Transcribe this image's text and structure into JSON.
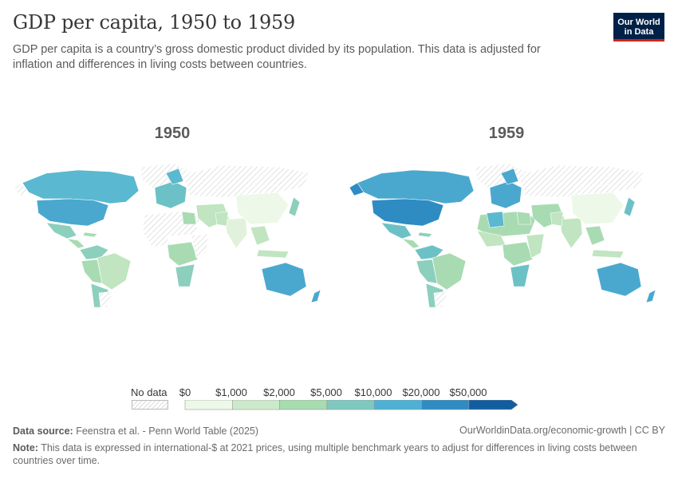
{
  "title": "GDP per capita, 1950 to 1959",
  "subtitle": "GDP per capita is a country’s gross domestic product divided by its population. This data is adjusted for inflation and differences in living costs between countries.",
  "logo": {
    "line1": "Our World",
    "line2": "in Data"
  },
  "maps": [
    {
      "year": "1950"
    },
    {
      "year": "1959"
    }
  ],
  "legend": {
    "no_data_label": "No data",
    "bins": [
      "$0",
      "$1,000",
      "$2,000",
      "$5,000",
      "$10,000",
      "$20,000",
      "$50,000"
    ],
    "colors": [
      "#eef8e8",
      "#cde9cc",
      "#a7dbb0",
      "#7fc8c0",
      "#4fb0d6",
      "#2e8cc2",
      "#125da0"
    ],
    "no_data_color": "#e6e6e6"
  },
  "footer": {
    "source_label": "Data source:",
    "source_text": "Feenstra et al. - Penn World Table (2025)",
    "url_license": "OurWorldinData.org/economic-growth | CC BY",
    "note_label": "Note:",
    "note_text": "This data is expressed in international-$ at 2021 prices, using multiple benchmark years to adjust for differences in living costs between countries over time."
  }
}
